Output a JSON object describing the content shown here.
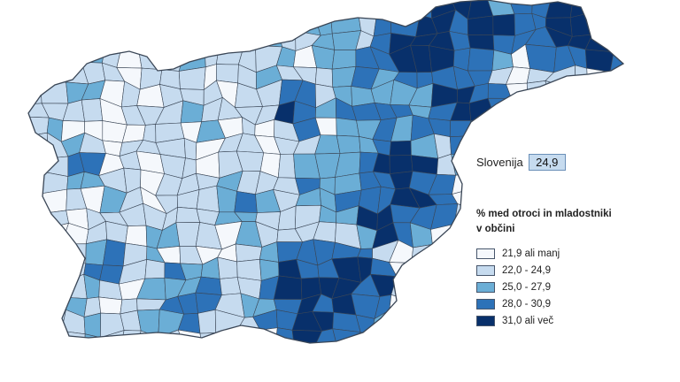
{
  "legend": {
    "title_line1": "% med otroci in mladostniki",
    "title_line2": "v občini",
    "classes": [
      {
        "label": "21,9 ali manj",
        "color": "#f5f8fc"
      },
      {
        "label": "22,0 - 24,9",
        "color": "#c6dbef"
      },
      {
        "label": "25,0 - 27,9",
        "color": "#6baed6"
      },
      {
        "label": "28,0 - 30,9",
        "color": "#2d72b8"
      },
      {
        "label": "31,0 ali več",
        "color": "#08306b"
      }
    ]
  },
  "summary": {
    "label": "Slovenija",
    "value": "24,9"
  },
  "colors": {
    "border": "#3a4656",
    "background": "#ffffff"
  }
}
